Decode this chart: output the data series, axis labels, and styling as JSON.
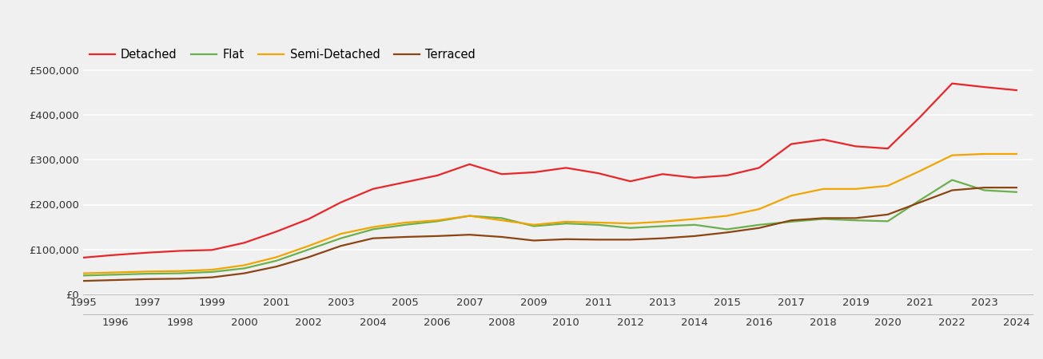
{
  "years": [
    1995,
    1996,
    1997,
    1998,
    1999,
    2000,
    2001,
    2002,
    2003,
    2004,
    2005,
    2006,
    2007,
    2008,
    2009,
    2010,
    2011,
    2012,
    2013,
    2014,
    2015,
    2016,
    2017,
    2018,
    2019,
    2020,
    2021,
    2022,
    2023,
    2024
  ],
  "detached": [
    82000,
    88000,
    93000,
    97000,
    99000,
    115000,
    140000,
    168000,
    205000,
    235000,
    250000,
    265000,
    290000,
    268000,
    272000,
    282000,
    270000,
    252000,
    268000,
    260000,
    265000,
    282000,
    335000,
    345000,
    330000,
    325000,
    395000,
    470000,
    462000,
    455000
  ],
  "flat": [
    42000,
    44000,
    46000,
    47000,
    50000,
    58000,
    75000,
    100000,
    125000,
    145000,
    155000,
    163000,
    175000,
    170000,
    152000,
    158000,
    155000,
    148000,
    152000,
    155000,
    145000,
    155000,
    162000,
    168000,
    165000,
    163000,
    210000,
    255000,
    232000,
    228000
  ],
  "semi_detached": [
    47000,
    49000,
    51000,
    52000,
    55000,
    65000,
    83000,
    108000,
    135000,
    150000,
    160000,
    165000,
    175000,
    165000,
    155000,
    162000,
    160000,
    158000,
    162000,
    168000,
    175000,
    190000,
    220000,
    235000,
    235000,
    242000,
    275000,
    310000,
    313000,
    313000
  ],
  "terraced": [
    30000,
    32000,
    34000,
    35000,
    38000,
    47000,
    62000,
    83000,
    108000,
    125000,
    128000,
    130000,
    133000,
    128000,
    120000,
    123000,
    122000,
    122000,
    125000,
    130000,
    138000,
    148000,
    165000,
    170000,
    170000,
    178000,
    205000,
    232000,
    238000,
    238000
  ],
  "colors": {
    "detached": "#e8262a",
    "flat": "#6ab04c",
    "semi_detached": "#f0a500",
    "terraced": "#8B4513"
  },
  "legend_labels": [
    "Detached",
    "Flat",
    "Semi-Detached",
    "Terraced"
  ],
  "ylim": [
    0,
    560000
  ],
  "yticks": [
    0,
    100000,
    200000,
    300000,
    400000,
    500000
  ],
  "xlim": [
    1995,
    2024.5
  ],
  "background_color": "#f0f0f0",
  "grid_color": "#ffffff",
  "line_width": 1.6
}
